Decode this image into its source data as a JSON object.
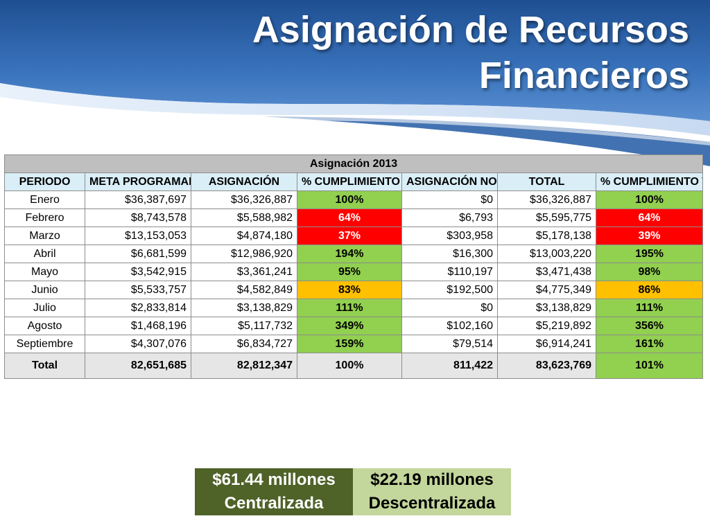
{
  "title": {
    "line1": "Asignación de Recursos",
    "line2": "Financieros"
  },
  "colors": {
    "header_blue": "#2e63a8",
    "header_header_light": "#d9eef7",
    "caption_grey": "#bfbfbf",
    "green": "#92d050",
    "red": "#ff0000",
    "amber": "#ffc000",
    "summary_dark": "#4f6228",
    "summary_light": "#c3d69b"
  },
  "table": {
    "caption": "Asignación  2013",
    "headers": {
      "periodo": "PERIODO",
      "meta": "META PROGRAMADA",
      "asignacion": "ASIGNACIÓN",
      "cumplimiento": "% CUMPLIMIENTO",
      "no_programada": "ASIGNACIÓN NO PROGRAMADA",
      "total": "TOTAL",
      "cumplimiento_total": "% CUMPLIMIENTO TOTAL"
    },
    "rows": [
      {
        "periodo": "Enero",
        "meta": "$36,387,697",
        "asignacion": "$36,326,887",
        "cumplimiento": "100%",
        "cumplimiento_status": "green",
        "no_programada": "$0",
        "total": "$36,326,887",
        "cumplimiento_total": "100%",
        "cumplimiento_total_status": "green"
      },
      {
        "periodo": "Febrero",
        "meta": "$8,743,578",
        "asignacion": "$5,588,982",
        "cumplimiento": "64%",
        "cumplimiento_status": "red",
        "no_programada": "$6,793",
        "total": "$5,595,775",
        "cumplimiento_total": "64%",
        "cumplimiento_total_status": "red"
      },
      {
        "periodo": "Marzo",
        "meta": "$13,153,053",
        "asignacion": "$4,874,180",
        "cumplimiento": "37%",
        "cumplimiento_status": "red",
        "no_programada": "$303,958",
        "total": "$5,178,138",
        "cumplimiento_total": "39%",
        "cumplimiento_total_status": "red"
      },
      {
        "periodo": "Abril",
        "meta": "$6,681,599",
        "asignacion": "$12,986,920",
        "cumplimiento": "194%",
        "cumplimiento_status": "green",
        "no_programada": "$16,300",
        "total": "$13,003,220",
        "cumplimiento_total": "195%",
        "cumplimiento_total_status": "green"
      },
      {
        "periodo": "Mayo",
        "meta": "$3,542,915",
        "asignacion": "$3,361,241",
        "cumplimiento": "95%",
        "cumplimiento_status": "green",
        "no_programada": "$110,197",
        "total": "$3,471,438",
        "cumplimiento_total": "98%",
        "cumplimiento_total_status": "green"
      },
      {
        "periodo": "Junio",
        "meta": "$5,533,757",
        "asignacion": "$4,582,849",
        "cumplimiento": "83%",
        "cumplimiento_status": "amber",
        "no_programada": "$192,500",
        "total": "$4,775,349",
        "cumplimiento_total": "86%",
        "cumplimiento_total_status": "amber"
      },
      {
        "periodo": "Julio",
        "meta": "$2,833,814",
        "asignacion": "$3,138,829",
        "cumplimiento": "111%",
        "cumplimiento_status": "green",
        "no_programada": "$0",
        "total": "$3,138,829",
        "cumplimiento_total": "111%",
        "cumplimiento_total_status": "green"
      },
      {
        "periodo": "Agosto",
        "meta": "$1,468,196",
        "asignacion": "$5,117,732",
        "cumplimiento": "349%",
        "cumplimiento_status": "green",
        "no_programada": "$102,160",
        "total": "$5,219,892",
        "cumplimiento_total": "356%",
        "cumplimiento_total_status": "green"
      },
      {
        "periodo": "Septiembre",
        "meta": "$4,307,076",
        "asignacion": "$6,834,727",
        "cumplimiento": "159%",
        "cumplimiento_status": "green",
        "no_programada": "$79,514",
        "total": "$6,914,241",
        "cumplimiento_total": "161%",
        "cumplimiento_total_status": "green"
      }
    ],
    "total_row": {
      "periodo": "Total",
      "meta": "82,651,685",
      "asignacion": "82,812,347",
      "cumplimiento": "100%",
      "no_programada": "811,422",
      "total": "83,623,769",
      "cumplimiento_total": "101%"
    }
  },
  "summary": {
    "centralizada_amount": "$61.44 millones",
    "descentralizada_amount": "$22.19 millones",
    "centralizada_label": "Centralizada",
    "descentralizada_label": "Descentralizada"
  }
}
